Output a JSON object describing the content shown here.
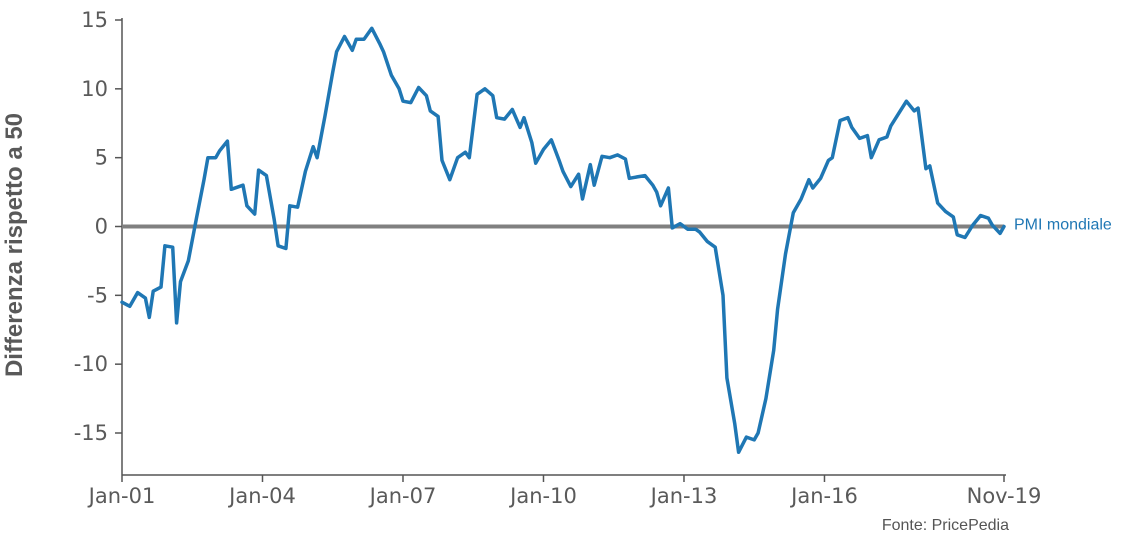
{
  "chart_data": {
    "type": "line",
    "ylabel": "Differenza rispetto a 50",
    "source": "Fonte: PricePedia",
    "xlim": [
      "Jan-01",
      "Nov-19"
    ],
    "ylim": [
      -17,
      15
    ],
    "x_ticks": [
      "Jan-01",
      "Jan-04",
      "Jan-07",
      "Jan-10",
      "Jan-13",
      "Jan-16",
      "Nov-19"
    ],
    "y_ticks": [
      "-15",
      "-10",
      "-5",
      "0",
      "5",
      "10",
      "15"
    ],
    "reference_line": {
      "y": 0,
      "color": "#808080"
    },
    "grid": false,
    "series": [
      {
        "name": "PMI mondiale",
        "color": "#1f77b4",
        "points": [
          [
            "2001-01",
            -5.5
          ],
          [
            "2001-03",
            -5.8
          ],
          [
            "2001-05",
            -4.8
          ],
          [
            "2001-07",
            -5.2
          ],
          [
            "2001-08",
            -6.6
          ],
          [
            "2001-09",
            -4.7
          ],
          [
            "2001-11",
            -4.4
          ],
          [
            "2001-12",
            -1.4
          ],
          [
            "2002-02",
            -1.5
          ],
          [
            "2002-03",
            -7.0
          ],
          [
            "2002-04",
            -4.0
          ],
          [
            "2002-06",
            -2.5
          ],
          [
            "2002-08",
            0.5
          ],
          [
            "2002-10",
            3.4
          ],
          [
            "2002-11",
            5.0
          ],
          [
            "2003-01",
            5.0
          ],
          [
            "2003-02",
            5.5
          ],
          [
            "2003-04",
            6.2
          ],
          [
            "2003-05",
            2.7
          ],
          [
            "2003-08",
            3.0
          ],
          [
            "2003-09",
            1.5
          ],
          [
            "2003-11",
            0.9
          ],
          [
            "2003-12",
            4.1
          ],
          [
            "2004-02",
            3.7
          ],
          [
            "2004-04",
            0.5
          ],
          [
            "2004-05",
            -1.4
          ],
          [
            "2004-07",
            -1.6
          ],
          [
            "2004-08",
            1.5
          ],
          [
            "2004-10",
            1.4
          ],
          [
            "2004-12",
            4.0
          ],
          [
            "2005-02",
            5.8
          ],
          [
            "2005-03",
            5.0
          ],
          [
            "2005-05",
            8.0
          ],
          [
            "2005-07",
            11.2
          ],
          [
            "2005-08",
            12.7
          ],
          [
            "2005-10",
            13.8
          ],
          [
            "2005-12",
            12.8
          ],
          [
            "2006-01",
            13.6
          ],
          [
            "2006-03",
            13.6
          ],
          [
            "2006-05",
            14.4
          ],
          [
            "2006-07",
            13.3
          ],
          [
            "2006-08",
            12.7
          ],
          [
            "2006-10",
            11.0
          ],
          [
            "2006-12",
            10.0
          ],
          [
            "2007-01",
            9.1
          ],
          [
            "2007-03",
            9.0
          ],
          [
            "2007-05",
            10.1
          ],
          [
            "2007-07",
            9.5
          ],
          [
            "2007-08",
            8.4
          ],
          [
            "2007-10",
            8.0
          ],
          [
            "2007-11",
            4.8
          ],
          [
            "2008-01",
            3.4
          ],
          [
            "2008-03",
            5.0
          ],
          [
            "2008-05",
            5.4
          ],
          [
            "2008-06",
            5.0
          ],
          [
            "2008-08",
            9.6
          ],
          [
            "2008-10",
            10.0
          ],
          [
            "2008-12",
            9.5
          ],
          [
            "2009-01",
            7.9
          ],
          [
            "2009-03",
            7.8
          ],
          [
            "2009-05",
            8.5
          ],
          [
            "2009-07",
            7.2
          ],
          [
            "2009-08",
            7.9
          ],
          [
            "2009-10",
            6.1
          ],
          [
            "2009-11",
            4.6
          ],
          [
            "2010-01",
            5.6
          ],
          [
            "2010-03",
            6.3
          ],
          [
            "2010-05",
            4.8
          ],
          [
            "2010-06",
            4.0
          ],
          [
            "2010-08",
            2.9
          ],
          [
            "2010-10",
            3.8
          ],
          [
            "2010-11",
            2.0
          ],
          [
            "2011-01",
            4.5
          ],
          [
            "2011-02",
            3.0
          ],
          [
            "2011-04",
            5.1
          ],
          [
            "2011-06",
            5.0
          ],
          [
            "2011-08",
            5.2
          ],
          [
            "2011-10",
            4.9
          ],
          [
            "2011-11",
            3.5
          ],
          [
            "2012-01",
            3.6
          ],
          [
            "2012-03",
            3.7
          ],
          [
            "2012-05",
            3.0
          ],
          [
            "2012-06",
            2.5
          ],
          [
            "2012-07",
            1.5
          ],
          [
            "2012-09",
            2.8
          ],
          [
            "2012-10",
            -0.1
          ],
          [
            "2012-12",
            0.2
          ],
          [
            "2013-02",
            -0.2
          ],
          [
            "2013-04",
            -0.2
          ],
          [
            "2013-05",
            -0.4
          ],
          [
            "2013-07",
            -1.1
          ],
          [
            "2013-09",
            -1.5
          ],
          [
            "2013-11",
            -5.0
          ],
          [
            "2013-12",
            -11.0
          ],
          [
            "2014-02",
            -14.3
          ],
          [
            "2014-03",
            -16.4
          ],
          [
            "2014-05",
            -15.3
          ],
          [
            "2014-07",
            -15.5
          ],
          [
            "2014-08",
            -15.0
          ],
          [
            "2014-10",
            -12.5
          ],
          [
            "2014-12",
            -9.0
          ],
          [
            "2015-01",
            -6.0
          ],
          [
            "2015-03",
            -2.0
          ],
          [
            "2015-05",
            1.0
          ],
          [
            "2015-07",
            2.0
          ],
          [
            "2015-09",
            3.4
          ],
          [
            "2015-10",
            2.8
          ],
          [
            "2015-12",
            3.5
          ],
          [
            "2016-02",
            4.8
          ],
          [
            "2016-03",
            5.0
          ],
          [
            "2016-05",
            7.7
          ],
          [
            "2016-07",
            7.9
          ],
          [
            "2016-08",
            7.2
          ],
          [
            "2016-10",
            6.4
          ],
          [
            "2016-12",
            6.6
          ],
          [
            "2017-01",
            5.0
          ],
          [
            "2017-03",
            6.3
          ],
          [
            "2017-05",
            6.5
          ],
          [
            "2017-06",
            7.3
          ],
          [
            "2017-08",
            8.2
          ],
          [
            "2017-10",
            9.1
          ],
          [
            "2017-12",
            8.4
          ],
          [
            "2018-01",
            8.6
          ],
          [
            "2018-03",
            4.2
          ],
          [
            "2018-04",
            4.4
          ],
          [
            "2018-06",
            1.7
          ],
          [
            "2018-08",
            1.1
          ],
          [
            "2018-10",
            0.7
          ],
          [
            "2018-11",
            -0.6
          ],
          [
            "2019-01",
            -0.8
          ],
          [
            "2019-03",
            0.1
          ],
          [
            "2019-05",
            0.8
          ],
          [
            "2019-07",
            0.6
          ],
          [
            "2019-08",
            0.1
          ],
          [
            "2019-10",
            -0.5
          ],
          [
            "2019-11",
            0.0
          ]
        ]
      }
    ]
  }
}
